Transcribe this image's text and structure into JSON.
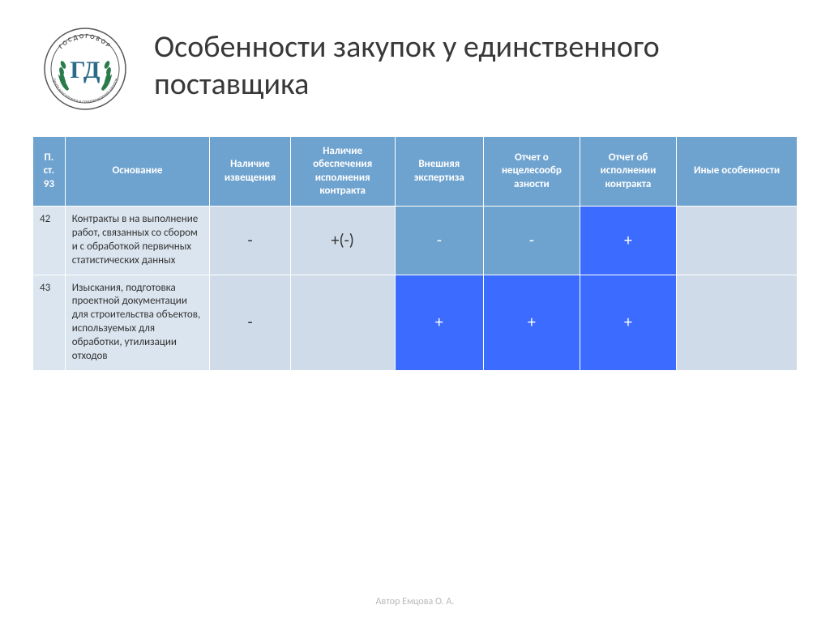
{
  "title": "Особенности закупок у единственного поставщика",
  "logo": {
    "top_text": "ГОСДОГОВОР",
    "monogram": "ГД",
    "ring_text": "Центр консалтинга и сопровождения закупок",
    "colors": {
      "outer": "#555555",
      "leaf": "#2b7a4b",
      "letters": "#2b6a88"
    }
  },
  "table": {
    "header_bg": "#6fa3cf",
    "header_text_color": "#ffffff",
    "columns": [
      "П. ст. 93",
      "Основание",
      "Наличие извещения",
      "Наличие обеспечения исполнения контракта",
      "Внешняя экспертиза",
      "Отчет о нецелесообр азности",
      "Отчет об исполнении контракта",
      "Иные особенности"
    ],
    "cell_palette": {
      "light": "#dbe5ef",
      "pale": "#cfdbe8",
      "mid": "#6fa3cf",
      "bright": "#3c6cff"
    },
    "text_colors": {
      "dark": "#333333",
      "white": "#ffffff"
    },
    "rows": [
      {
        "num": "42",
        "basis": "Контракты в на выполнение работ, связанных со сбором и с обработкой первичных статистических данных",
        "num_bg": "light",
        "basis_bg": "light",
        "cells": [
          {
            "text": "-",
            "bg": "pale",
            "fg": "dark"
          },
          {
            "text": "+(-)",
            "bg": "pale",
            "fg": "dark"
          },
          {
            "text": "-",
            "bg": "mid",
            "fg": "white"
          },
          {
            "text": "-",
            "bg": "mid",
            "fg": "white"
          },
          {
            "text": "+",
            "bg": "bright",
            "fg": "white"
          },
          {
            "text": "",
            "bg": "pale",
            "fg": "dark"
          }
        ]
      },
      {
        "num": "43",
        "basis": "Изыскания, подготовка проектной документации для строительства объектов, используемых для обработки, утилизации отходов",
        "num_bg": "light",
        "basis_bg": "light",
        "cells": [
          {
            "text": "-",
            "bg": "pale",
            "fg": "dark"
          },
          {
            "text": "",
            "bg": "pale",
            "fg": "dark"
          },
          {
            "text": "+",
            "bg": "bright",
            "fg": "white"
          },
          {
            "text": "+",
            "bg": "bright",
            "fg": "white"
          },
          {
            "text": "+",
            "bg": "bright",
            "fg": "white"
          },
          {
            "text": "",
            "bg": "pale",
            "fg": "dark"
          }
        ]
      }
    ]
  },
  "footer": "Автор Емцова О. А."
}
